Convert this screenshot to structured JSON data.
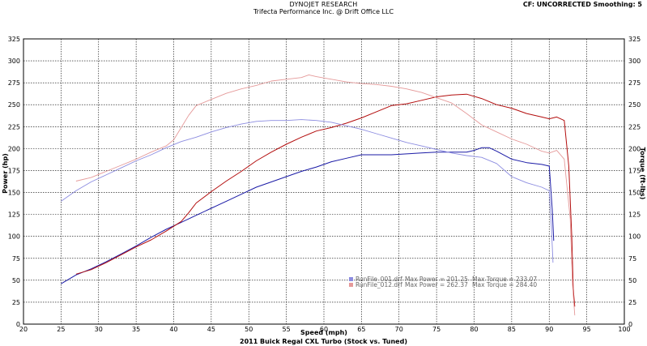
{
  "header": {
    "title": "DYNOJET RESEARCH",
    "subtitle": "Trifecta Performance Inc. @ Drift Office LLC",
    "settings": "CF: UNCORRECTED  Smoothing: 5"
  },
  "footer": {
    "title": "2011 Buick Regal CXL Turbo (Stock vs. Tuned)"
  },
  "legend": [
    {
      "file": "RunFile_001.drf",
      "power_text": "Max Power = 201.25",
      "torque_text": "Max Torque = 233.07"
    },
    {
      "file": "RunFile_012.drf",
      "power_text": "Max Power = 262.37",
      "torque_text": "Max Torque = 284.40"
    }
  ],
  "chart_data": {
    "type": "line",
    "xlabel": "Speed (mph)",
    "ylabel_left": "Power (hp)",
    "ylabel_right": "Torque (ft-lbs)",
    "xlim": [
      20,
      100
    ],
    "ylim": [
      0,
      325
    ],
    "x_ticks": [
      20,
      25,
      30,
      35,
      40,
      45,
      50,
      55,
      60,
      65,
      70,
      75,
      80,
      85,
      90,
      95,
      100
    ],
    "y_ticks": [
      0,
      25,
      50,
      75,
      100,
      125,
      150,
      175,
      200,
      225,
      250,
      275,
      300,
      325
    ],
    "grid": true,
    "series": [
      {
        "name": "RunFile_001.drf Power",
        "color": "#1a1aa6",
        "width": 1.0,
        "x": [
          25,
          27,
          29,
          31,
          33,
          35,
          37,
          39,
          41,
          43,
          45,
          47,
          49,
          51,
          53,
          55,
          57,
          59,
          61,
          63,
          65,
          67,
          69,
          71,
          73,
          75,
          77,
          79,
          80,
          81,
          82,
          83,
          85,
          87,
          89,
          90,
          90.4,
          90.6
        ],
        "y": [
          46,
          56,
          63,
          71,
          80,
          89,
          99,
          108,
          116,
          124,
          132,
          140,
          148,
          156,
          162,
          168,
          174,
          179,
          185,
          189,
          193,
          193,
          193,
          194,
          195,
          196,
          196,
          196,
          198,
          201,
          201,
          197,
          188,
          184,
          182,
          180,
          130,
          95
        ]
      },
      {
        "name": "RunFile_012.drf Power",
        "color": "#b30d0d",
        "width": 1.0,
        "x": [
          27,
          29,
          31,
          33,
          35,
          37,
          39,
          41,
          42,
          43,
          45,
          47,
          49,
          51,
          53,
          55,
          57,
          59,
          61,
          63,
          65,
          67,
          69,
          71,
          73,
          75,
          77,
          79,
          81,
          83,
          85,
          87,
          89,
          90,
          91,
          92,
          92.6,
          93,
          93.2,
          93.4
        ],
        "y": [
          57,
          62,
          70,
          79,
          88,
          96,
          106,
          117,
          127,
          138,
          151,
          163,
          174,
          186,
          196,
          205,
          213,
          220,
          224,
          229,
          235,
          242,
          249,
          251,
          255,
          259,
          261,
          262,
          257,
          250,
          246,
          240,
          236,
          234,
          236,
          232,
          180,
          100,
          40,
          20
        ]
      },
      {
        "name": "RunFile_001.drf Torque",
        "color": "#8c8ce0",
        "width": 0.9,
        "x": [
          25,
          27,
          29,
          31,
          33,
          35,
          37,
          39,
          41,
          43,
          45,
          47,
          49,
          51,
          53,
          55,
          57,
          59,
          61,
          63,
          65,
          67,
          69,
          71,
          73,
          75,
          77,
          79,
          81,
          83,
          85,
          87,
          89,
          90,
          90.3,
          90.5
        ],
        "y": [
          140,
          152,
          162,
          170,
          178,
          186,
          193,
          201,
          208,
          213,
          219,
          224,
          228,
          231,
          232,
          232,
          233,
          232,
          230,
          226,
          222,
          217,
          212,
          207,
          203,
          199,
          195,
          192,
          190,
          183,
          168,
          161,
          156,
          152,
          110,
          70
        ]
      },
      {
        "name": "RunFile_012.drf Torque",
        "color": "#e59a9a",
        "width": 0.9,
        "x": [
          27,
          29,
          31,
          33,
          35,
          37,
          39,
          40,
          41,
          42,
          43,
          45,
          47,
          49,
          51,
          53,
          55,
          57,
          58,
          59,
          61,
          63,
          65,
          67,
          69,
          71,
          73,
          75,
          77,
          79,
          81,
          83,
          85,
          87,
          89,
          90,
          91,
          92,
          92.8,
          93.1,
          93.4
        ],
        "y": [
          163,
          167,
          174,
          181,
          188,
          196,
          203,
          210,
          224,
          238,
          249,
          256,
          263,
          268,
          272,
          277,
          279,
          281,
          284,
          282,
          279,
          276,
          274,
          273,
          271,
          268,
          264,
          258,
          252,
          240,
          227,
          219,
          211,
          205,
          197,
          195,
          198,
          188,
          120,
          45,
          10
        ]
      }
    ]
  }
}
